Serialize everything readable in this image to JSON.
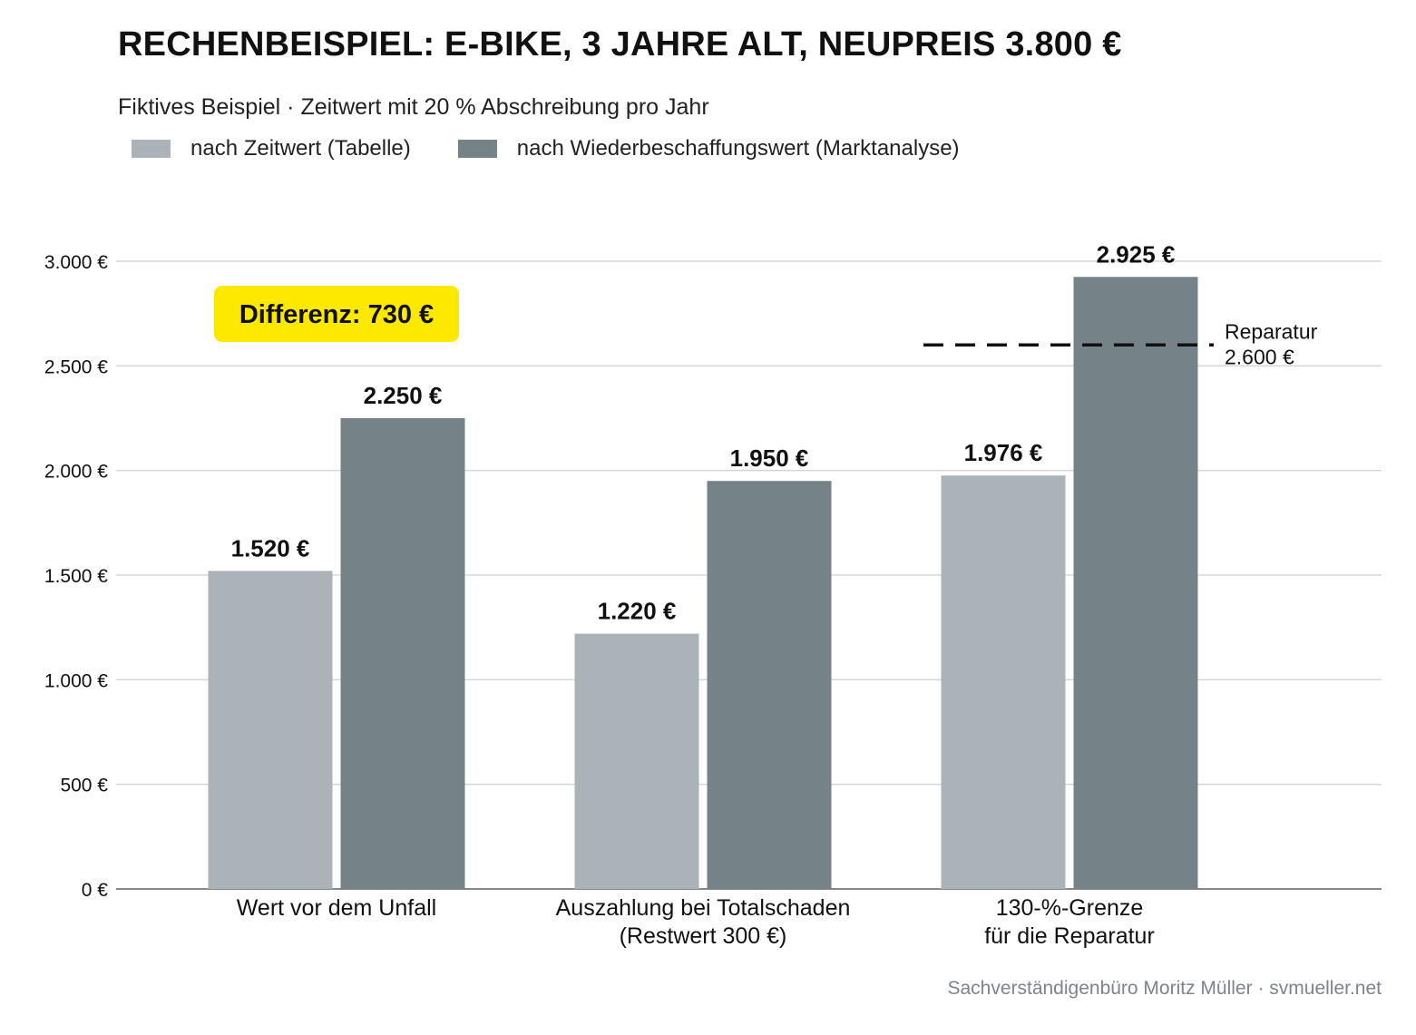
{
  "title": "RECHENBEISPIEL: E-BIKE, 3 JAHRE ALT, NEUPREIS 3.800 €",
  "subtitle": "Fiktives Beispiel · Zeitwert mit 20 % Abschreibung pro Jahr",
  "footer": "Sachverständigenbüro Moritz Müller · svmueller.net",
  "colors": {
    "series_light": "#abb3b9",
    "series_dark": "#758389",
    "badge": "#fde800",
    "grid": "#d3d6d9",
    "axis": "#888888"
  },
  "chart_data": {
    "type": "bar",
    "categories": [
      [
        "Wert vor dem Unfall"
      ],
      [
        "Auszahlung bei Totalschaden",
        "(Restwert 300 €)"
      ],
      [
        "130-%-Grenze",
        "für die Reparatur"
      ]
    ],
    "series": [
      {
        "name": "nach Zeitwert (Tabelle)",
        "values": [
          1520,
          1220,
          1976
        ],
        "labels": [
          "1.520 €",
          "1.220 €",
          "1.976 €"
        ],
        "color": "#abb3b9"
      },
      {
        "name": "nach Wiederbeschaffungswert (Marktanalyse)",
        "values": [
          2250,
          1950,
          2925
        ],
        "labels": [
          "2.250 €",
          "1.950 €",
          "2.925 €"
        ],
        "color": "#758389"
      }
    ],
    "ylim": [
      0,
      3000
    ],
    "yticks": [
      0,
      500,
      1000,
      1500,
      2000,
      2500,
      3000
    ],
    "ytick_labels": [
      "0 €",
      "500 €",
      "1.000 €",
      "1.500 €",
      "2.000 €",
      "2.500 €",
      "3.000 €"
    ],
    "grid": true,
    "legend_position": "top-left",
    "reference_line": {
      "value": 2600,
      "category_index": 2,
      "style": "dashed",
      "label_lines": [
        "Reparatur",
        "2.600 €"
      ]
    },
    "annotation": {
      "text": "Differenz: 730 €",
      "category_index": 0
    }
  }
}
